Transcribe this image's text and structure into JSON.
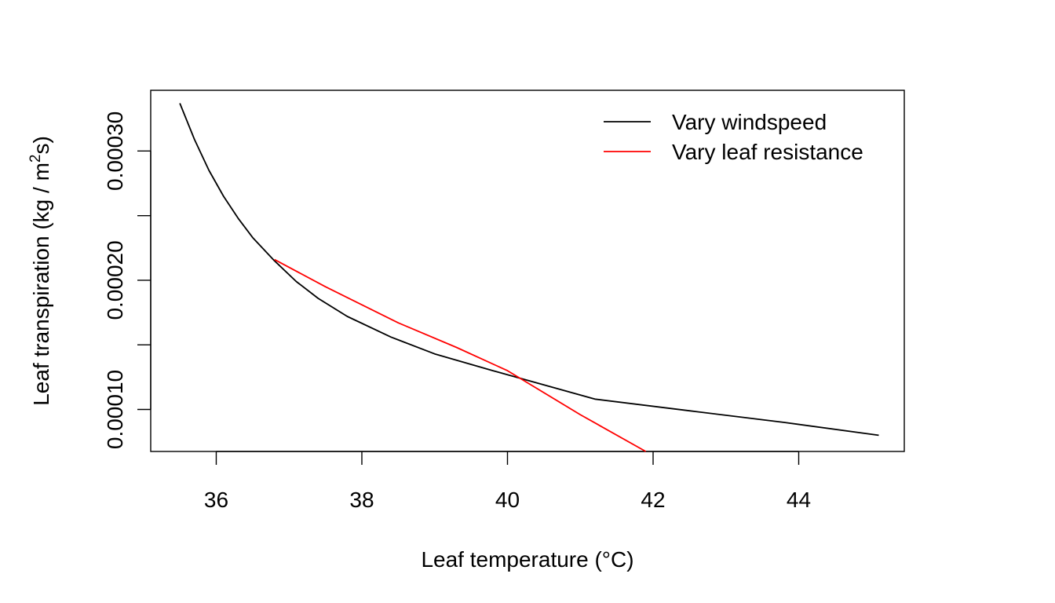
{
  "chart_data": {
    "type": "line",
    "xlabel": "Leaf temperature (°C)",
    "ylabel_main": "Leaf transpiration (kg / m",
    "ylabel_sup": "2",
    "ylabel_tail": "s)",
    "xlim": [
      35.1,
      45.45
    ],
    "ylim": [
      6.75e-05,
      0.000347
    ],
    "x_ticks": [
      36,
      38,
      40,
      42,
      44
    ],
    "x_tick_labels": [
      "36",
      "38",
      "40",
      "42",
      "44"
    ],
    "y_ticks": [
      0.0001,
      0.00015,
      0.0002,
      0.00025,
      0.0003
    ],
    "y_tick_labels": [
      "0.00010",
      "",
      "0.00020",
      "",
      "0.00030"
    ],
    "legend_position": "top-right",
    "series": [
      {
        "name": "Vary windspeed",
        "color": "#000000",
        "x": [
          35.5,
          35.7,
          35.9,
          36.1,
          36.3,
          36.5,
          36.8,
          37.1,
          37.4,
          37.8,
          38.4,
          39.0,
          39.8,
          41.2,
          42.5,
          43.8,
          45.1
        ],
        "y": [
          0.000337,
          0.000309,
          0.000285,
          0.000265,
          0.000248,
          0.000233,
          0.000215,
          0.000199,
          0.000186,
          0.000172,
          0.000156,
          0.000143,
          0.00013,
          0.000108,
          9.9e-05,
          9e-05,
          8e-05
        ]
      },
      {
        "name": "Vary leaf resistance",
        "color": "#ff0000",
        "x": [
          36.8,
          37.5,
          38.5,
          39.3,
          40.0,
          41.0,
          41.9
        ],
        "y": [
          0.000216,
          0.000195,
          0.000167,
          0.000148,
          0.00013,
          9.6e-05,
          6.75e-05
        ]
      }
    ]
  }
}
